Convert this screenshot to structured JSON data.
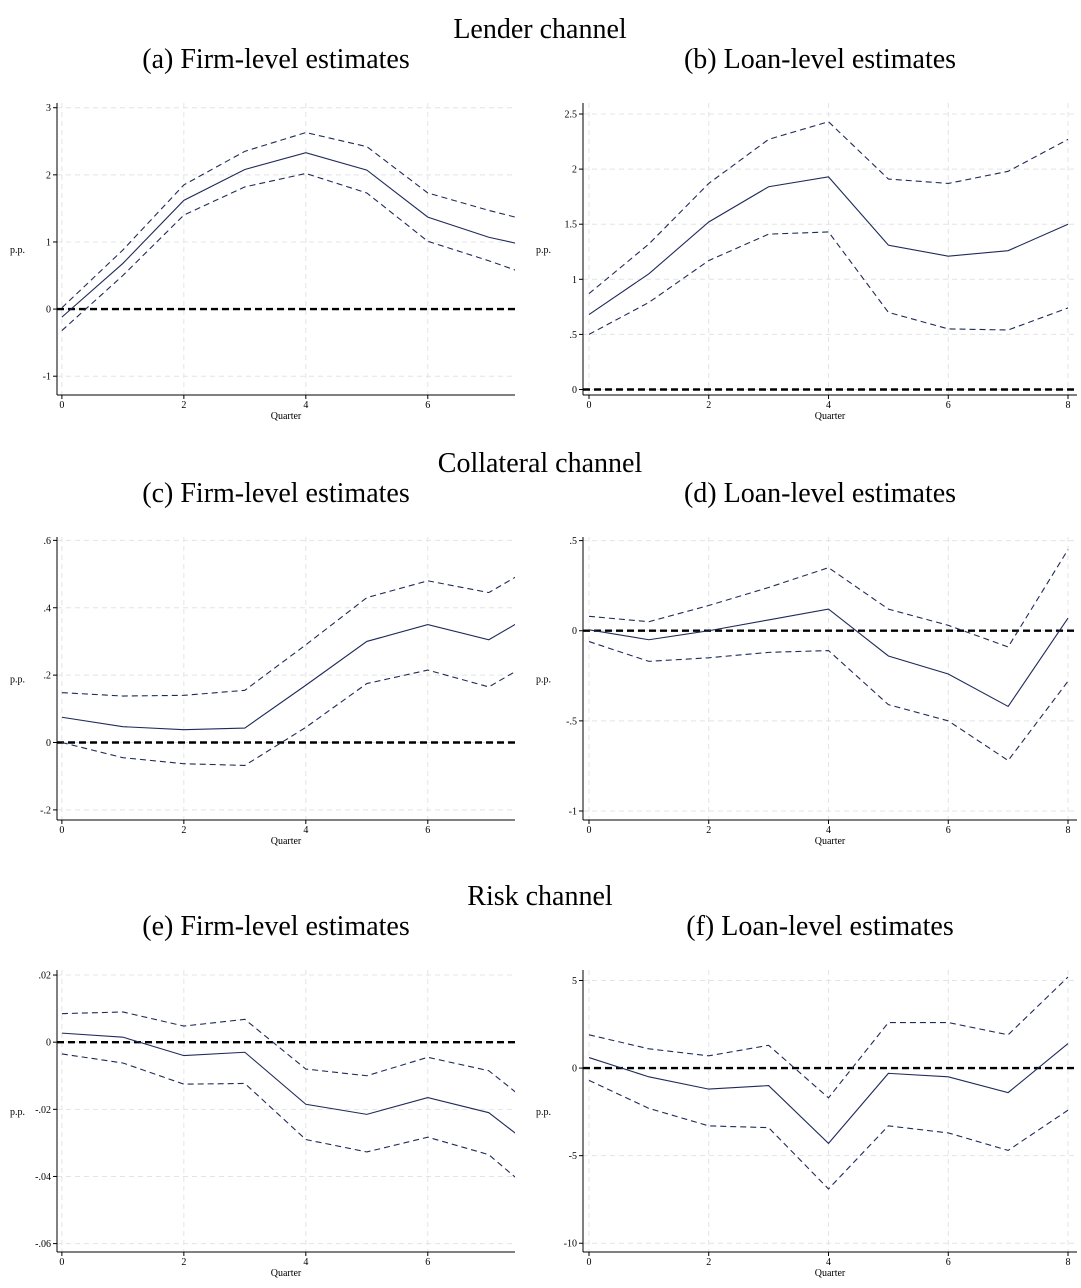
{
  "sections": [
    "Lender channel",
    "Collateral channel",
    "Risk channel"
  ],
  "chart_data": [
    {
      "type": "line",
      "title": "(a) Firm-level estimates",
      "xlabel": "Quarter",
      "ylabel": "p.p.",
      "x": [
        0,
        1,
        2,
        3,
        4,
        5,
        6,
        7,
        8
      ],
      "xlim": [
        -0.08,
        7.43
      ],
      "xticks": [
        0,
        2,
        4,
        6
      ],
      "ylim": [
        -1.28,
        3.07
      ],
      "yticks": [
        -1,
        0,
        1,
        2,
        3
      ],
      "grid": true,
      "hline": 0,
      "series": [
        {
          "color": "#1f2a5a",
          "dash": false,
          "values": [
            -0.12,
            0.68,
            1.62,
            2.08,
            2.33,
            2.07,
            1.37,
            1.07,
            0.87
          ]
        },
        {
          "color": "#1f2a5a",
          "dash": true,
          "values": [
            0.02,
            0.88,
            1.85,
            2.35,
            2.63,
            2.42,
            1.73,
            1.47,
            1.24
          ]
        },
        {
          "color": "#1f2a5a",
          "dash": true,
          "values": [
            -0.32,
            0.5,
            1.4,
            1.82,
            2.02,
            1.73,
            1.01,
            0.72,
            0.4
          ]
        }
      ]
    },
    {
      "type": "line",
      "title": "(b) Loan-level estimates",
      "xlabel": "Quarter",
      "ylabel": "p.p.",
      "x": [
        0,
        1,
        2,
        3,
        4,
        5,
        6,
        7,
        8
      ],
      "xlim": [
        -0.1,
        8.15
      ],
      "xticks": [
        0,
        2,
        4,
        6,
        8
      ],
      "ylim": [
        -0.05,
        2.6
      ],
      "yticks": [
        0,
        {
          "value": 0.5,
          "label": ".5"
        },
        1,
        1.5,
        2,
        2.5
      ],
      "grid": true,
      "hline": 0,
      "series": [
        {
          "color": "#1f2a5a",
          "dash": false,
          "values": [
            0.68,
            1.05,
            1.52,
            1.84,
            1.93,
            1.31,
            1.21,
            1.26,
            1.5
          ]
        },
        {
          "color": "#1f2a5a",
          "dash": true,
          "values": [
            0.87,
            1.32,
            1.87,
            2.27,
            2.43,
            1.91,
            1.87,
            1.98,
            2.27
          ]
        },
        {
          "color": "#1f2a5a",
          "dash": true,
          "values": [
            0.5,
            0.79,
            1.17,
            1.41,
            1.43,
            0.7,
            0.55,
            0.54,
            0.74
          ]
        }
      ]
    },
    {
      "type": "line",
      "title": "(c) Firm-level estimates",
      "xlabel": "Quarter",
      "ylabel": "p.p.",
      "x": [
        0,
        1,
        2,
        3,
        4,
        5,
        6,
        7,
        8
      ],
      "xlim": [
        -0.08,
        7.43
      ],
      "xticks": [
        0,
        2,
        4,
        6
      ],
      "ylim": [
        -0.23,
        0.61
      ],
      "yticks": [
        {
          "value": -0.2,
          "label": "-.2"
        },
        0,
        {
          "value": 0.2,
          "label": ".2"
        },
        {
          "value": 0.4,
          "label": ".4"
        },
        {
          "value": 0.6,
          "label": ".6"
        }
      ],
      "grid": true,
      "hline": 0,
      "series": [
        {
          "color": "#1f2a5a",
          "dash": false,
          "values": [
            0.075,
            0.047,
            0.038,
            0.043,
            0.17,
            0.3,
            0.35,
            0.305,
            0.41
          ]
        },
        {
          "color": "#1f2a5a",
          "dash": true,
          "values": [
            0.148,
            0.138,
            0.14,
            0.155,
            0.29,
            0.43,
            0.48,
            0.445,
            0.55
          ]
        },
        {
          "color": "#1f2a5a",
          "dash": true,
          "values": [
            0,
            -0.045,
            -0.063,
            -0.068,
            0.045,
            0.175,
            0.215,
            0.165,
            0.27
          ]
        }
      ]
    },
    {
      "type": "line",
      "title": "(d) Loan-level estimates",
      "xlabel": "Quarter",
      "ylabel": "p.p.",
      "x": [
        0,
        1,
        2,
        3,
        4,
        5,
        6,
        7,
        8
      ],
      "xlim": [
        -0.1,
        8.15
      ],
      "xticks": [
        0,
        2,
        4,
        6,
        8
      ],
      "ylim": [
        -1.05,
        0.52
      ],
      "yticks": [
        -1,
        {
          "value": -0.5,
          "label": "-.5"
        },
        0,
        {
          "value": 0.5,
          "label": ".5"
        }
      ],
      "grid": true,
      "hline": 0,
      "series": [
        {
          "color": "#1f2a5a",
          "dash": false,
          "values": [
            0.005,
            -0.05,
            0,
            0.06,
            0.12,
            -0.14,
            -0.24,
            -0.42,
            0.07
          ]
        },
        {
          "color": "#1f2a5a",
          "dash": true,
          "values": [
            0.08,
            0.05,
            0.14,
            0.24,
            0.35,
            0.12,
            0.03,
            -0.09,
            0.45
          ]
        },
        {
          "color": "#1f2a5a",
          "dash": true,
          "values": [
            -0.06,
            -0.17,
            -0.15,
            -0.12,
            -0.11,
            -0.41,
            -0.5,
            -0.72,
            -0.28
          ]
        }
      ]
    },
    {
      "type": "line",
      "title": "(e) Firm-level estimates",
      "xlabel": "Quarter",
      "ylabel": "p.p.",
      "x": [
        0,
        1,
        2,
        3,
        4,
        5,
        6,
        7,
        8
      ],
      "xlim": [
        -0.08,
        7.43
      ],
      "xticks": [
        0,
        2,
        4,
        6
      ],
      "ylim": [
        -0.0625,
        0.0215
      ],
      "yticks": [
        {
          "value": -0.06,
          "label": "-.06"
        },
        {
          "value": -0.04,
          "label": "-.04"
        },
        {
          "value": -0.02,
          "label": "-.02"
        },
        0,
        {
          "value": 0.02,
          "label": ".02"
        }
      ],
      "grid": true,
      "hline": 0,
      "series": [
        {
          "color": "#1f2a5a",
          "dash": false,
          "values": [
            0.0027,
            0.0015,
            -0.004,
            -0.003,
            -0.0185,
            -0.0215,
            -0.0165,
            -0.021,
            -0.035
          ]
        },
        {
          "color": "#1f2a5a",
          "dash": true,
          "values": [
            0.0085,
            0.009,
            0.0048,
            0.0068,
            -0.008,
            -0.01,
            -0.0045,
            -0.0085,
            -0.023
          ]
        },
        {
          "color": "#1f2a5a",
          "dash": true,
          "values": [
            -0.0035,
            -0.0062,
            -0.0125,
            -0.0123,
            -0.029,
            -0.0327,
            -0.0283,
            -0.0335,
            -0.049
          ]
        }
      ]
    },
    {
      "type": "line",
      "title": "(f) Loan-level estimates",
      "xlabel": "Quarter",
      "ylabel": "p.p.",
      "x": [
        0,
        1,
        2,
        3,
        4,
        5,
        6,
        7,
        8
      ],
      "xlim": [
        -0.1,
        8.15
      ],
      "xticks": [
        0,
        2,
        4,
        6,
        8
      ],
      "ylim": [
        -10.5,
        5.6
      ],
      "yticks": [
        -10,
        -5,
        0,
        5
      ],
      "grid": true,
      "hline": 0,
      "series": [
        {
          "color": "#1f2a5a",
          "dash": false,
          "values": [
            0.6,
            -0.5,
            -1.2,
            -1.0,
            -4.3,
            -0.3,
            -0.5,
            -1.4,
            1.4
          ]
        },
        {
          "color": "#1f2a5a",
          "dash": true,
          "values": [
            1.9,
            1.1,
            0.7,
            1.3,
            -1.7,
            2.6,
            2.6,
            1.9,
            5.2
          ]
        },
        {
          "color": "#1f2a5a",
          "dash": true,
          "values": [
            -0.7,
            -2.3,
            -3.3,
            -3.4,
            -6.9,
            -3.3,
            -3.7,
            -4.7,
            -2.4
          ]
        }
      ]
    }
  ]
}
